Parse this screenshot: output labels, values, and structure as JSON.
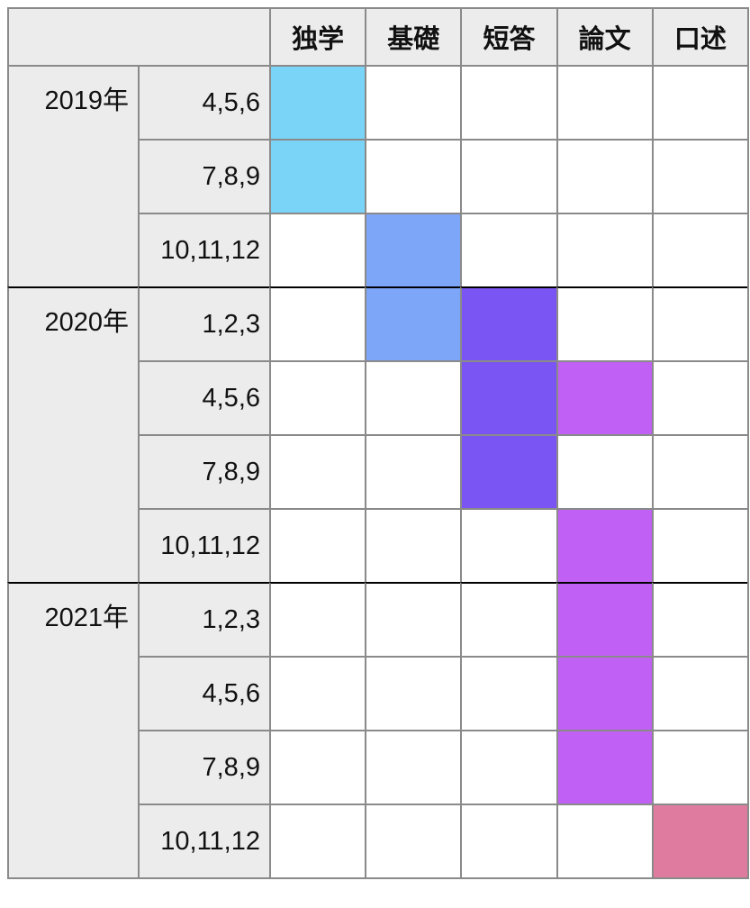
{
  "table": {
    "columns": [
      {
        "name": "独学",
        "color": "#79d4f7"
      },
      {
        "name": "基礎",
        "color": "#7ea6f8"
      },
      {
        "name": "短答",
        "color": "#7b55f3"
      },
      {
        "name": "論文",
        "color": "#c060f5"
      },
      {
        "name": "口述",
        "color": "#e07ba0"
      }
    ],
    "years": [
      {
        "label": "2019年",
        "rows": [
          {
            "label": "4,5,6",
            "cells": [
              true,
              false,
              false,
              false,
              false
            ]
          },
          {
            "label": "7,8,9",
            "cells": [
              true,
              false,
              false,
              false,
              false
            ]
          },
          {
            "label": "10,11,12",
            "cells": [
              false,
              true,
              false,
              false,
              false
            ]
          }
        ]
      },
      {
        "label": "2020年",
        "rows": [
          {
            "label": "1,2,3",
            "cells": [
              false,
              true,
              true,
              false,
              false
            ]
          },
          {
            "label": "4,5,6",
            "cells": [
              false,
              false,
              true,
              true,
              false
            ]
          },
          {
            "label": "7,8,9",
            "cells": [
              false,
              false,
              true,
              false,
              false
            ]
          },
          {
            "label": "10,11,12",
            "cells": [
              false,
              false,
              false,
              true,
              false
            ]
          }
        ]
      },
      {
        "label": "2021年",
        "rows": [
          {
            "label": "1,2,3",
            "cells": [
              false,
              false,
              false,
              true,
              false
            ]
          },
          {
            "label": "4,5,6",
            "cells": [
              false,
              false,
              false,
              true,
              false
            ]
          },
          {
            "label": "7,8,9",
            "cells": [
              false,
              false,
              false,
              true,
              false
            ]
          },
          {
            "label": "10,11,12",
            "cells": [
              false,
              false,
              false,
              false,
              true
            ]
          }
        ]
      }
    ]
  }
}
